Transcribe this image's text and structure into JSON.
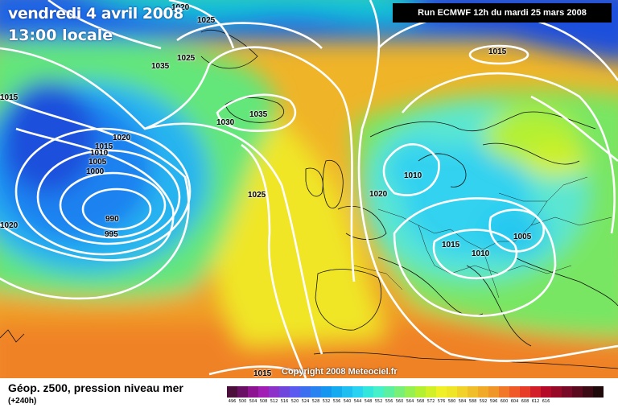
{
  "header": {
    "date": "vendredi 4 avril 2008",
    "time": "13:00 locale",
    "run": "Run ECMWF 12h du mardi 25 mars 2008"
  },
  "footer": {
    "title": "Géop. z500, pression niveau mer",
    "forecast": "(+240h)",
    "copyright": "Copyright 2008 Meteociel.fr"
  },
  "isobars": [
    {
      "id": "lbl1020top",
      "value": "1020"
    },
    {
      "id": "lbl1025top",
      "value": "1025"
    },
    {
      "id": "lbl1025b",
      "value": "1025"
    },
    {
      "id": "lbl1035a",
      "value": "1035"
    },
    {
      "id": "lbl1030",
      "value": "1030"
    },
    {
      "id": "lbl1035b",
      "value": "1035"
    },
    {
      "id": "lbl1015left",
      "value": "1015"
    },
    {
      "id": "lbl1020a",
      "value": "1020"
    },
    {
      "id": "lbl1015a",
      "value": "1015"
    },
    {
      "id": "lbl1010a",
      "value": "1010"
    },
    {
      "id": "lbl1005a",
      "value": "1005"
    },
    {
      "id": "lbl1000",
      "value": "1000"
    },
    {
      "id": "lbl990",
      "value": "990"
    },
    {
      "id": "lbl995",
      "value": "995"
    },
    {
      "id": "lbl1020left",
      "value": "1020"
    },
    {
      "id": "lbl1025mid",
      "value": "1025"
    },
    {
      "id": "lbl1015ne",
      "value": "1015"
    },
    {
      "id": "lbl1010b",
      "value": "1010"
    },
    {
      "id": "lbl1020c",
      "value": "1020"
    },
    {
      "id": "lbl1015c",
      "value": "1015"
    },
    {
      "id": "lbl1010c",
      "value": "1010"
    },
    {
      "id": "lbl1005b",
      "value": "1005"
    },
    {
      "id": "lbl1015bot",
      "value": "1015"
    }
  ],
  "legend": {
    "colors": [
      "#4b0f3c",
      "#6a1064",
      "#8c1490",
      "#a01eb4",
      "#8c32c8",
      "#6e46dc",
      "#5a5af0",
      "#3c6ef0",
      "#2882f0",
      "#1496f0",
      "#14aaf0",
      "#1ebef0",
      "#28d2f0",
      "#32e6dc",
      "#46f0c8",
      "#5af0a0",
      "#78f078",
      "#96f050",
      "#b4f032",
      "#d2f028",
      "#f0f028",
      "#f0e628",
      "#f0d228",
      "#f0be28",
      "#f0aa28",
      "#f09628",
      "#f07828",
      "#f05a28",
      "#e63c28",
      "#d21e28",
      "#b40a28",
      "#960a28",
      "#780a28",
      "#5a0a1e",
      "#3c0a14",
      "#1e0a0a"
    ],
    "ticks": [
      "496",
      "500",
      "504",
      "508",
      "512",
      "516",
      "520",
      "524",
      "528",
      "532",
      "536",
      "540",
      "544",
      "548",
      "552",
      "556",
      "560",
      "564",
      "568",
      "572",
      "576",
      "580",
      "584",
      "588",
      "592",
      "596",
      "600",
      "604",
      "608",
      "612",
      "616",
      "",
      "",
      "",
      "",
      ""
    ]
  }
}
